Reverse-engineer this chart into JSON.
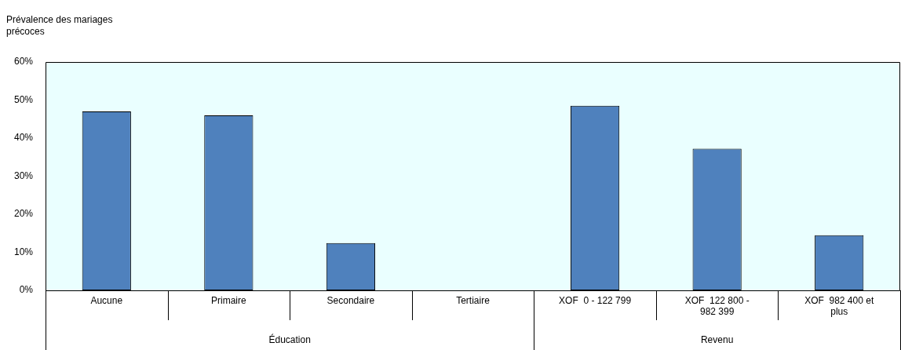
{
  "chart_data": {
    "type": "bar",
    "ylabel": "Prévalence des mariages précoces",
    "categories": [
      "Aucune",
      "Primaire",
      "Secondaire",
      "Tertiaire",
      "XOF  0 - 122 799",
      "XOF  122 800 - 982 399",
      "XOF  982 400 et plus"
    ],
    "values": [
      47,
      46,
      12.4,
      null,
      48.5,
      37.2,
      14.5
    ],
    "color": "#4f81bd",
    "ylim": [
      0,
      60
    ],
    "yticks": [
      {
        "value": 0,
        "label": "0%"
      },
      {
        "value": 10,
        "label": "10%"
      },
      {
        "value": 20,
        "label": "20%"
      },
      {
        "value": 30,
        "label": "30%"
      },
      {
        "value": 40,
        "label": "40%"
      },
      {
        "value": 50,
        "label": "50%"
      },
      {
        "value": 60,
        "label": "60%"
      }
    ],
    "grid": false,
    "legend": false,
    "annotations": [
      "Éducation",
      "Revenu"
    ]
  }
}
